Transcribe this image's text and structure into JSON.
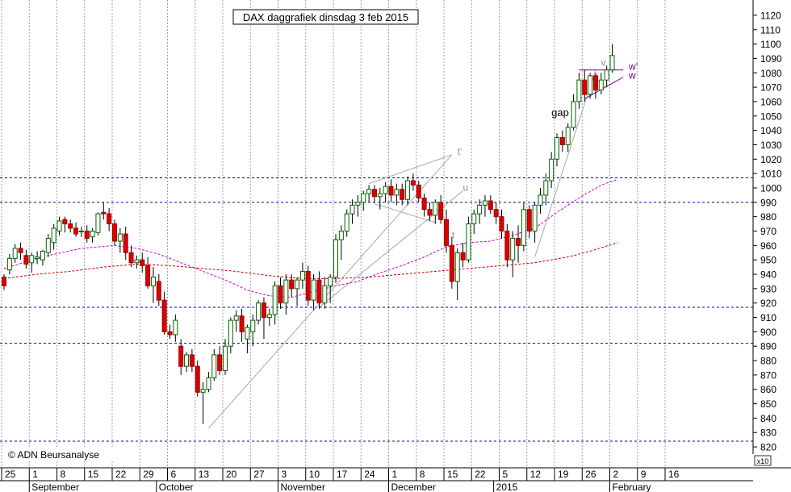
{
  "chart_data": {
    "type": "candlestick",
    "title": "DAX daggrafiek dinsdag 3 feb 2015",
    "watermark": "© ADN Beursanalyse",
    "y_multiplier_label": "x10",
    "ylim": [
      815,
      1125
    ],
    "y_ticks": [
      820,
      830,
      840,
      850,
      860,
      870,
      880,
      890,
      900,
      910,
      920,
      930,
      940,
      950,
      960,
      970,
      980,
      990,
      1000,
      1010,
      1020,
      1030,
      1040,
      1050,
      1060,
      1070,
      1080,
      1090,
      1100,
      1110,
      1120
    ],
    "x_day_labels": [
      {
        "label": "25",
        "index": 0
      },
      {
        "label": "1",
        "index": 5
      },
      {
        "label": "8",
        "index": 10
      },
      {
        "label": "15",
        "index": 15
      },
      {
        "label": "22",
        "index": 20
      },
      {
        "label": "29",
        "index": 25
      },
      {
        "label": "6",
        "index": 30
      },
      {
        "label": "13",
        "index": 35
      },
      {
        "label": "20",
        "index": 40
      },
      {
        "label": "27",
        "index": 45
      },
      {
        "label": "3",
        "index": 50
      },
      {
        "label": "10",
        "index": 55
      },
      {
        "label": "17",
        "index": 60
      },
      {
        "label": "24",
        "index": 65
      },
      {
        "label": "1",
        "index": 70
      },
      {
        "label": "8",
        "index": 75
      },
      {
        "label": "15",
        "index": 80
      },
      {
        "label": "22",
        "index": 85
      },
      {
        "label": "5",
        "index": 90
      },
      {
        "label": "12",
        "index": 95
      },
      {
        "label": "19",
        "index": 100
      },
      {
        "label": "26",
        "index": 105
      },
      {
        "label": "2",
        "index": 110
      },
      {
        "label": "9",
        "index": 115
      },
      {
        "label": "16",
        "index": 120
      }
    ],
    "x_month_labels": [
      {
        "label": "September",
        "index": 5
      },
      {
        "label": "October",
        "index": 28
      },
      {
        "label": "November",
        "index": 50
      },
      {
        "label": "December",
        "index": 70
      },
      {
        "label": "2015",
        "index": 89
      },
      {
        "label": "February",
        "index": 110
      }
    ],
    "horizontal_levels": [
      1007,
      990,
      917,
      892,
      824
    ],
    "annotations": [
      {
        "text": "gap",
        "index": 99,
        "value": 1050
      },
      {
        "text": "t'",
        "index": 82,
        "value": 1023
      },
      {
        "text": "u",
        "index": 83,
        "value": 998
      },
      {
        "text": "t",
        "index": 81,
        "value": 965
      },
      {
        "text": "v",
        "index": 108,
        "value": 1085
      },
      {
        "text": "w'",
        "index": 113,
        "value": 1082
      },
      {
        "text": "w",
        "index": 113,
        "value": 1076
      }
    ],
    "trendlines": [
      {
        "from": {
          "index": 37,
          "value": 833
        },
        "to": {
          "index": 81,
          "value": 1023
        }
      },
      {
        "from": {
          "index": 57,
          "value": 917
        },
        "to": {
          "index": 83,
          "value": 998
        }
      },
      {
        "from": {
          "index": 96,
          "value": 952
        },
        "to": {
          "index": 107,
          "value": 1082
        }
      },
      {
        "from": {
          "index": 66,
          "value": 1003
        },
        "to": {
          "index": 81,
          "value": 1023
        }
      },
      {
        "from": {
          "index": 67,
          "value": 989
        },
        "to": {
          "index": 78,
          "value": 976
        }
      },
      {
        "from": {
          "index": 104,
          "value": 1082
        },
        "to": {
          "index": 112,
          "value": 1082
        }
      },
      {
        "from": {
          "index": 105,
          "value": 1062
        },
        "to": {
          "index": 112,
          "value": 1077
        }
      }
    ],
    "moving_averages": [
      {
        "color": "#cc00cc",
        "points": [
          [
            0,
            944
          ],
          [
            8,
            953
          ],
          [
            14,
            958
          ],
          [
            20,
            960
          ],
          [
            24,
            958
          ],
          [
            28,
            954
          ],
          [
            32,
            948
          ],
          [
            36,
            942
          ],
          [
            40,
            936
          ],
          [
            44,
            929
          ],
          [
            48,
            925
          ],
          [
            52,
            924
          ],
          [
            56,
            928
          ],
          [
            60,
            932
          ],
          [
            64,
            935
          ],
          [
            68,
            941
          ],
          [
            72,
            946
          ],
          [
            76,
            952
          ],
          [
            80,
            959
          ],
          [
            84,
            962
          ],
          [
            88,
            963
          ],
          [
            92,
            967
          ],
          [
            96,
            972
          ],
          [
            100,
            983
          ],
          [
            104,
            993
          ],
          [
            108,
            1002
          ],
          [
            111,
            1006
          ]
        ]
      },
      {
        "color": "#cc0000",
        "points": [
          [
            0,
            937
          ],
          [
            6,
            940
          ],
          [
            12,
            942
          ],
          [
            18,
            945
          ],
          [
            24,
            947
          ],
          [
            30,
            946
          ],
          [
            36,
            944
          ],
          [
            42,
            942
          ],
          [
            48,
            939
          ],
          [
            54,
            937
          ],
          [
            60,
            937
          ],
          [
            66,
            938
          ],
          [
            72,
            940
          ],
          [
            78,
            942
          ],
          [
            84,
            944
          ],
          [
            90,
            946
          ],
          [
            96,
            948
          ],
          [
            102,
            952
          ],
          [
            106,
            956
          ],
          [
            111,
            962
          ]
        ]
      }
    ],
    "candles": [
      [
        0,
        938,
        940,
        929,
        932
      ],
      [
        1,
        943,
        954,
        940,
        951
      ],
      [
        2,
        951,
        961,
        948,
        958
      ],
      [
        3,
        958,
        962,
        950,
        955
      ],
      [
        4,
        953,
        957,
        944,
        947
      ],
      [
        5,
        948,
        955,
        941,
        953
      ],
      [
        6,
        951,
        956,
        947,
        952
      ],
      [
        7,
        950,
        957,
        946,
        956
      ],
      [
        8,
        955,
        968,
        952,
        965
      ],
      [
        9,
        962,
        975,
        957,
        972
      ],
      [
        10,
        970,
        980,
        967,
        977
      ],
      [
        11,
        978,
        980,
        969,
        975
      ],
      [
        12,
        975,
        978,
        969,
        972
      ],
      [
        13,
        972,
        976,
        966,
        968
      ],
      [
        14,
        970,
        973,
        966,
        970
      ],
      [
        15,
        970,
        974,
        962,
        965
      ],
      [
        16,
        966,
        972,
        962,
        970
      ],
      [
        17,
        969,
        983,
        967,
        982
      ],
      [
        18,
        983,
        990,
        978,
        982
      ],
      [
        19,
        982,
        986,
        970,
        975
      ],
      [
        20,
        975,
        978,
        960,
        963
      ],
      [
        21,
        963,
        972,
        955,
        968
      ],
      [
        22,
        968,
        973,
        950,
        955
      ],
      [
        23,
        955,
        960,
        945,
        948
      ],
      [
        24,
        948,
        953,
        944,
        950
      ],
      [
        25,
        950,
        955,
        941,
        946
      ],
      [
        26,
        946,
        952,
        930,
        932
      ],
      [
        27,
        932,
        945,
        920,
        938
      ],
      [
        28,
        935,
        940,
        918,
        922
      ],
      [
        29,
        922,
        928,
        898,
        900
      ],
      [
        30,
        900,
        905,
        895,
        898
      ],
      [
        31,
        898,
        912,
        893,
        908
      ],
      [
        32,
        890,
        895,
        870,
        876
      ],
      [
        33,
        876,
        886,
        872,
        884
      ],
      [
        34,
        884,
        888,
        872,
        876
      ],
      [
        35,
        876,
        880,
        855,
        858
      ],
      [
        36,
        858,
        865,
        836,
        860
      ],
      [
        37,
        860,
        872,
        858,
        868
      ],
      [
        38,
        868,
        888,
        866,
        884
      ],
      [
        39,
        884,
        890,
        870,
        873
      ],
      [
        40,
        873,
        895,
        870,
        890
      ],
      [
        41,
        890,
        910,
        885,
        908
      ],
      [
        42,
        908,
        915,
        900,
        911
      ],
      [
        43,
        911,
        916,
        893,
        900
      ],
      [
        44,
        895,
        905,
        885,
        903
      ],
      [
        45,
        900,
        912,
        890,
        908
      ],
      [
        46,
        908,
        922,
        905,
        920
      ],
      [
        47,
        920,
        924,
        895,
        910
      ],
      [
        48,
        910,
        916,
        904,
        912
      ],
      [
        49,
        912,
        935,
        905,
        932
      ],
      [
        50,
        932,
        938,
        916,
        920
      ],
      [
        51,
        920,
        940,
        912,
        936
      ],
      [
        52,
        936,
        940,
        924,
        930
      ],
      [
        53,
        930,
        938,
        918,
        936
      ],
      [
        54,
        936,
        948,
        930,
        942
      ],
      [
        55,
        942,
        946,
        918,
        922
      ],
      [
        56,
        922,
        940,
        915,
        936
      ],
      [
        57,
        936,
        942,
        916,
        920
      ],
      [
        58,
        920,
        938,
        916,
        932
      ],
      [
        59,
        932,
        940,
        920,
        938
      ],
      [
        60,
        938,
        968,
        934,
        964
      ],
      [
        61,
        964,
        974,
        950,
        970
      ],
      [
        62,
        970,
        985,
        966,
        982
      ],
      [
        63,
        982,
        992,
        975,
        988
      ],
      [
        64,
        988,
        995,
        980,
        990
      ],
      [
        65,
        990,
        998,
        984,
        996
      ],
      [
        66,
        996,
        1002,
        990,
        999
      ],
      [
        67,
        999,
        1002,
        990,
        994
      ],
      [
        68,
        994,
        1000,
        985,
        996
      ],
      [
        69,
        996,
        1004,
        990,
        1001
      ],
      [
        70,
        1001,
        1006,
        990,
        995
      ],
      [
        71,
        995,
        1003,
        988,
        999
      ],
      [
        72,
        999,
        1003,
        988,
        992
      ],
      [
        73,
        992,
        1008,
        988,
        1005
      ],
      [
        74,
        1005,
        1010,
        998,
        1002
      ],
      [
        75,
        1002,
        1005,
        990,
        993
      ],
      [
        76,
        993,
        996,
        980,
        985
      ],
      [
        77,
        985,
        990,
        977,
        981
      ],
      [
        78,
        981,
        992,
        975,
        990
      ],
      [
        79,
        990,
        995,
        975,
        978
      ],
      [
        80,
        978,
        985,
        955,
        960
      ],
      [
        81,
        960,
        966,
        930,
        935
      ],
      [
        82,
        935,
        958,
        922,
        955
      ],
      [
        83,
        955,
        962,
        945,
        950
      ],
      [
        84,
        950,
        980,
        948,
        975
      ],
      [
        85,
        975,
        985,
        968,
        982
      ],
      [
        86,
        982,
        992,
        975,
        988
      ],
      [
        87,
        988,
        995,
        980,
        991
      ],
      [
        88,
        991,
        995,
        982,
        985
      ],
      [
        89,
        985,
        990,
        975,
        980
      ],
      [
        90,
        980,
        985,
        965,
        970
      ],
      [
        91,
        970,
        975,
        945,
        950
      ],
      [
        92,
        950,
        970,
        938,
        965
      ],
      [
        93,
        965,
        974,
        948,
        960
      ],
      [
        94,
        960,
        990,
        956,
        985
      ],
      [
        95,
        985,
        988,
        965,
        970
      ],
      [
        96,
        970,
        990,
        962,
        988
      ],
      [
        97,
        988,
        1000,
        982,
        995
      ],
      [
        98,
        995,
        1010,
        988,
        1005
      ],
      [
        99,
        1005,
        1025,
        1000,
        1020
      ],
      [
        100,
        1020,
        1038,
        1015,
        1035
      ],
      [
        101,
        1035,
        1040,
        1025,
        1030
      ],
      [
        102,
        1030,
        1045,
        1025,
        1042
      ],
      [
        103,
        1042,
        1065,
        1040,
        1060
      ],
      [
        104,
        1060,
        1080,
        1055,
        1075
      ],
      [
        105,
        1075,
        1082,
        1060,
        1065
      ],
      [
        106,
        1065,
        1080,
        1062,
        1078
      ],
      [
        107,
        1078,
        1080,
        1062,
        1068
      ],
      [
        108,
        1068,
        1080,
        1065,
        1075
      ],
      [
        109,
        1075,
        1085,
        1070,
        1082
      ],
      [
        110,
        1082,
        1100,
        1080,
        1092
      ]
    ]
  }
}
